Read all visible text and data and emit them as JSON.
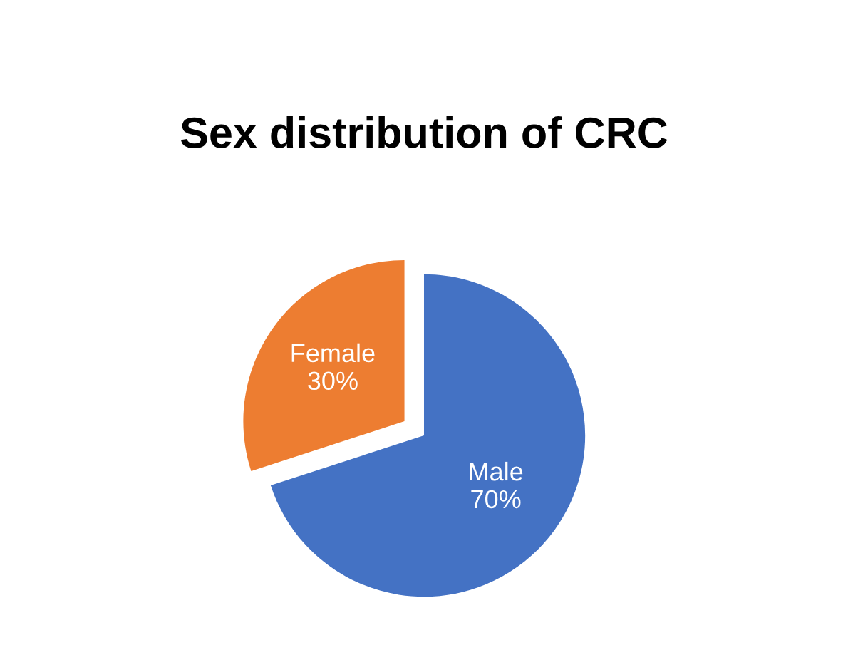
{
  "chart_data": {
    "type": "pie",
    "title": "Sex distribution of CRC",
    "categories": [
      "Male",
      "Female"
    ],
    "values": [
      70,
      30
    ],
    "colors": [
      "#4472c4",
      "#ed7d31"
    ],
    "value_labels": [
      "70%",
      "30%"
    ],
    "legend": false
  }
}
